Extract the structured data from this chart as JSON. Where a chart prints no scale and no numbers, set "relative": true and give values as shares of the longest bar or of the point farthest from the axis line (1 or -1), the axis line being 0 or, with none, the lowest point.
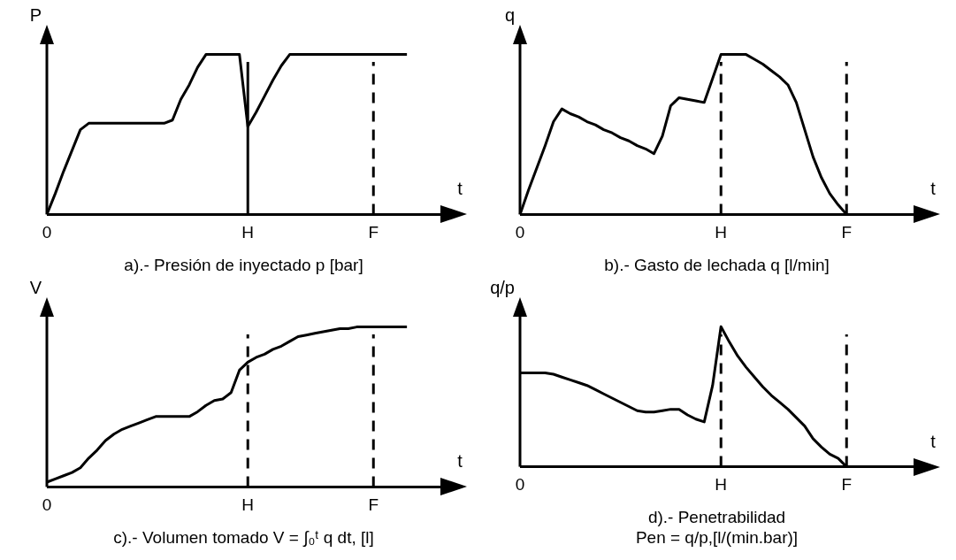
{
  "chart_data": [
    {
      "type": "line",
      "title": "a).- Presión de inyectado p [bar]",
      "xlabel": "t",
      "ylabel": "P",
      "relative": true,
      "marker": "none",
      "line_style": "solid",
      "categories": [
        "0",
        null,
        null,
        null,
        null,
        null,
        null,
        null,
        null,
        null,
        null,
        null,
        null,
        null,
        null,
        null,
        null,
        null,
        null,
        null,
        null,
        null,
        null,
        null,
        "H",
        null,
        null,
        null,
        null,
        null,
        null,
        null,
        null,
        null,
        null,
        null,
        null,
        null,
        null,
        "F",
        null,
        null,
        null,
        null,
        null,
        null,
        null,
        null
      ],
      "series": [
        {
          "color": "#000000",
          "values": [
            0,
            0.13,
            0.27,
            0.4,
            0.53,
            0.57,
            0.57,
            0.57,
            0.57,
            0.57,
            0.57,
            0.57,
            0.57,
            0.57,
            0.57,
            0.59,
            0.72,
            0.81,
            0.92,
            1,
            1,
            1,
            1,
            1,
            0.55,
            0.64,
            0.74,
            0.84,
            0.93,
            1,
            1,
            1,
            1,
            1,
            1,
            1,
            1,
            1,
            1,
            1,
            1,
            1,
            1,
            1,
            null,
            null,
            null,
            null
          ]
        }
      ],
      "ref_lines": [
        {
          "axis": "x",
          "value": "H",
          "color": "#000000",
          "line_style": "solid"
        },
        {
          "axis": "x",
          "value": "F",
          "color": "#000000",
          "line_style": "dashed"
        }
      ]
    },
    {
      "type": "line",
      "title": "b).- Gasto de lechada q [l/min]",
      "xlabel": "t",
      "ylabel": "q",
      "relative": true,
      "marker": "none",
      "line_style": "solid",
      "categories": [
        "0",
        null,
        null,
        null,
        null,
        null,
        null,
        null,
        null,
        null,
        null,
        null,
        null,
        null,
        null,
        null,
        null,
        null,
        null,
        null,
        null,
        null,
        null,
        null,
        "H",
        null,
        null,
        null,
        null,
        null,
        null,
        null,
        null,
        null,
        null,
        null,
        null,
        null,
        null,
        "F",
        null,
        null,
        null,
        null,
        null,
        null,
        null,
        null
      ],
      "series": [
        {
          "color": "#000000",
          "values": [
            0,
            0.15,
            0.29,
            0.43,
            0.58,
            0.66,
            0.63,
            0.61,
            0.58,
            0.56,
            0.53,
            0.51,
            0.48,
            0.46,
            0.43,
            0.41,
            0.38,
            0.49,
            0.68,
            0.73,
            0.72,
            0.71,
            0.7,
            0.85,
            1,
            1,
            1,
            1,
            0.97,
            0.94,
            0.9,
            0.86,
            0.81,
            0.7,
            0.53,
            0.36,
            0.23,
            0.13,
            0.06,
            0,
            null,
            null,
            null,
            null,
            null,
            null,
            null,
            null
          ]
        }
      ],
      "ref_lines": [
        {
          "axis": "x",
          "value": "H",
          "color": "#000000",
          "line_style": "dashed"
        },
        {
          "axis": "x",
          "value": "F",
          "color": "#000000",
          "line_style": "dashed"
        }
      ]
    },
    {
      "type": "line",
      "title": "c).- Volumen tomado V = ∫₀ᵗ q dt, [l]",
      "xlabel": "t",
      "ylabel": "V",
      "relative": true,
      "marker": "none",
      "line_style": "solid",
      "categories": [
        "0",
        null,
        null,
        null,
        null,
        null,
        null,
        null,
        null,
        null,
        null,
        null,
        null,
        null,
        null,
        null,
        null,
        null,
        null,
        null,
        null,
        null,
        null,
        null,
        "H",
        null,
        null,
        null,
        null,
        null,
        null,
        null,
        null,
        null,
        null,
        null,
        null,
        null,
        null,
        "F",
        null,
        null,
        null,
        null,
        null,
        null,
        null,
        null
      ],
      "series": [
        {
          "color": "#000000",
          "values": [
            0.03,
            0.05,
            0.07,
            0.09,
            0.12,
            0.18,
            0.23,
            0.29,
            0.33,
            0.36,
            0.38,
            0.4,
            0.42,
            0.44,
            0.44,
            0.44,
            0.44,
            0.44,
            0.47,
            0.51,
            0.54,
            0.55,
            0.59,
            0.73,
            0.78,
            0.81,
            0.83,
            0.86,
            0.88,
            0.91,
            0.94,
            0.95,
            0.96,
            0.97,
            0.98,
            0.99,
            0.99,
            1,
            1,
            1,
            1,
            1,
            1,
            1,
            null,
            null,
            null,
            null
          ]
        }
      ],
      "ref_lines": [
        {
          "axis": "x",
          "value": "H",
          "color": "#000000",
          "line_style": "dashed"
        },
        {
          "axis": "x",
          "value": "F",
          "color": "#000000",
          "line_style": "dashed"
        }
      ]
    },
    {
      "type": "line",
      "title": "d).- Penetrabilidad\nPen = q/p,[l/(min.bar)]",
      "xlabel": "t",
      "ylabel": "q/p",
      "relative": true,
      "marker": "none",
      "line_style": "solid",
      "categories": [
        "0",
        null,
        null,
        null,
        null,
        null,
        null,
        null,
        null,
        null,
        null,
        null,
        null,
        null,
        null,
        null,
        null,
        null,
        null,
        null,
        null,
        null,
        null,
        null,
        "H",
        null,
        null,
        null,
        null,
        null,
        null,
        null,
        null,
        null,
        null,
        null,
        null,
        null,
        null,
        "F",
        null,
        null,
        null,
        null,
        null,
        null,
        null,
        null
      ],
      "series": [
        {
          "color": "#000000",
          "values": [
            0.67,
            0.67,
            0.67,
            0.67,
            0.66,
            0.64,
            0.62,
            0.6,
            0.58,
            0.55,
            0.52,
            0.49,
            0.46,
            0.43,
            0.4,
            0.39,
            0.39,
            0.4,
            0.41,
            0.41,
            0.37,
            0.34,
            0.32,
            0.58,
            1,
            0.89,
            0.79,
            0.71,
            0.64,
            0.57,
            0.51,
            0.46,
            0.41,
            0.35,
            0.29,
            0.2,
            0.14,
            0.09,
            0.06,
            0,
            null,
            null,
            null,
            null,
            null,
            null,
            null,
            null
          ]
        }
      ],
      "ref_lines": [
        {
          "axis": "x",
          "value": "H",
          "color": "#000000",
          "line_style": "dashed"
        },
        {
          "axis": "x",
          "value": "F",
          "color": "#000000",
          "line_style": "dashed"
        }
      ]
    }
  ]
}
